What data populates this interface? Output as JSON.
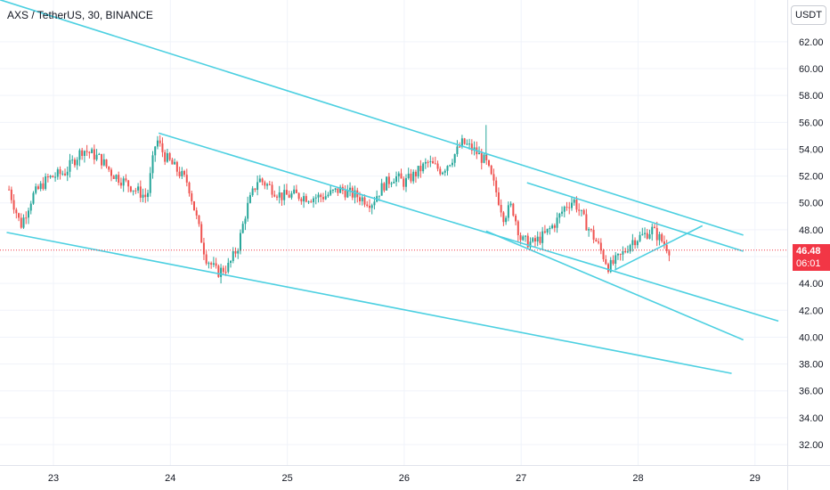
{
  "header": {
    "title": "AXS / TetherUS, 30, BINANCE"
  },
  "currency_button": {
    "label": "USDT"
  },
  "last_price": {
    "value": "46.48",
    "countdown": "06:01",
    "color": "#f23645"
  },
  "colors": {
    "up": "#26a69a",
    "down": "#ef5350",
    "trendline": "#4dd0e1",
    "grid": "#f0f3fa"
  },
  "chart_data": {
    "type": "candlestick",
    "y_axis": {
      "ticks": [
        "32.00",
        "34.00",
        "36.00",
        "38.00",
        "40.00",
        "42.00",
        "44.00",
        "46.00",
        "48.00",
        "50.00",
        "52.00",
        "54.00",
        "56.00",
        "58.00",
        "60.00",
        "62.00"
      ],
      "ylim": [
        30.5,
        64.0
      ]
    },
    "x_axis": {
      "ticks": [
        "23",
        "24",
        "25",
        "26",
        "27",
        "28",
        "29"
      ],
      "xlim": [
        22.6,
        29.4
      ]
    },
    "grid": true,
    "last_price": 46.48,
    "price_path": [
      [
        22.62,
        51.0
      ],
      [
        22.72,
        48.3
      ],
      [
        22.82,
        50.5
      ],
      [
        22.95,
        51.8
      ],
      [
        23.1,
        52.3
      ],
      [
        23.25,
        54.0
      ],
      [
        23.4,
        53.3
      ],
      [
        23.5,
        52.2
      ],
      [
        23.65,
        51.3
      ],
      [
        23.8,
        50.4
      ],
      [
        23.88,
        54.8
      ],
      [
        23.95,
        53.5
      ],
      [
        24.05,
        52.5
      ],
      [
        24.15,
        51.5
      ],
      [
        24.22,
        49.0
      ],
      [
        24.3,
        46.0
      ],
      [
        24.4,
        44.8
      ],
      [
        24.5,
        45.3
      ],
      [
        24.58,
        46.8
      ],
      [
        24.65,
        49.5
      ],
      [
        24.75,
        51.8
      ],
      [
        24.85,
        51.2
      ],
      [
        24.95,
        50.5
      ],
      [
        25.05,
        50.6
      ],
      [
        25.2,
        50.4
      ],
      [
        25.32,
        50.5
      ],
      [
        25.45,
        51.0
      ],
      [
        25.6,
        50.5
      ],
      [
        25.72,
        50.0
      ],
      [
        25.82,
        51.3
      ],
      [
        25.92,
        52.0
      ],
      [
        26.0,
        51.5
      ],
      [
        26.1,
        52.2
      ],
      [
        26.2,
        53.0
      ],
      [
        26.32,
        52.4
      ],
      [
        26.4,
        53.2
      ],
      [
        26.5,
        54.5
      ],
      [
        26.6,
        53.9
      ],
      [
        26.7,
        53.0
      ],
      [
        26.78,
        51.0
      ],
      [
        26.85,
        49.0
      ],
      [
        26.92,
        49.8
      ],
      [
        27.0,
        47.2
      ],
      [
        27.1,
        47.0
      ],
      [
        27.2,
        47.6
      ],
      [
        27.3,
        48.6
      ],
      [
        27.38,
        49.8
      ],
      [
        27.45,
        50.2
      ],
      [
        27.55,
        48.5
      ],
      [
        27.65,
        47.0
      ],
      [
        27.75,
        45.2
      ],
      [
        27.85,
        46.0
      ],
      [
        27.95,
        47.2
      ],
      [
        28.05,
        47.6
      ],
      [
        28.12,
        48.0
      ],
      [
        28.2,
        47.2
      ],
      [
        28.27,
        46.48
      ]
    ],
    "trendlines": [
      {
        "from": [
          22.3,
          65.8
        ],
        "to": [
          28.9,
          47.6
        ]
      },
      {
        "from": [
          23.9,
          55.2
        ],
        "to": [
          29.2,
          41.2
        ]
      },
      {
        "from": [
          22.6,
          47.8
        ],
        "to": [
          28.8,
          37.3
        ]
      },
      {
        "from": [
          27.05,
          51.5
        ],
        "to": [
          28.9,
          46.4
        ]
      },
      {
        "from": [
          26.7,
          47.9
        ],
        "to": [
          28.9,
          39.8
        ]
      },
      {
        "from": [
          27.8,
          45.0
        ],
        "to": [
          28.55,
          48.3
        ]
      }
    ],
    "spike": {
      "x": 26.7,
      "high": 55.8
    }
  }
}
